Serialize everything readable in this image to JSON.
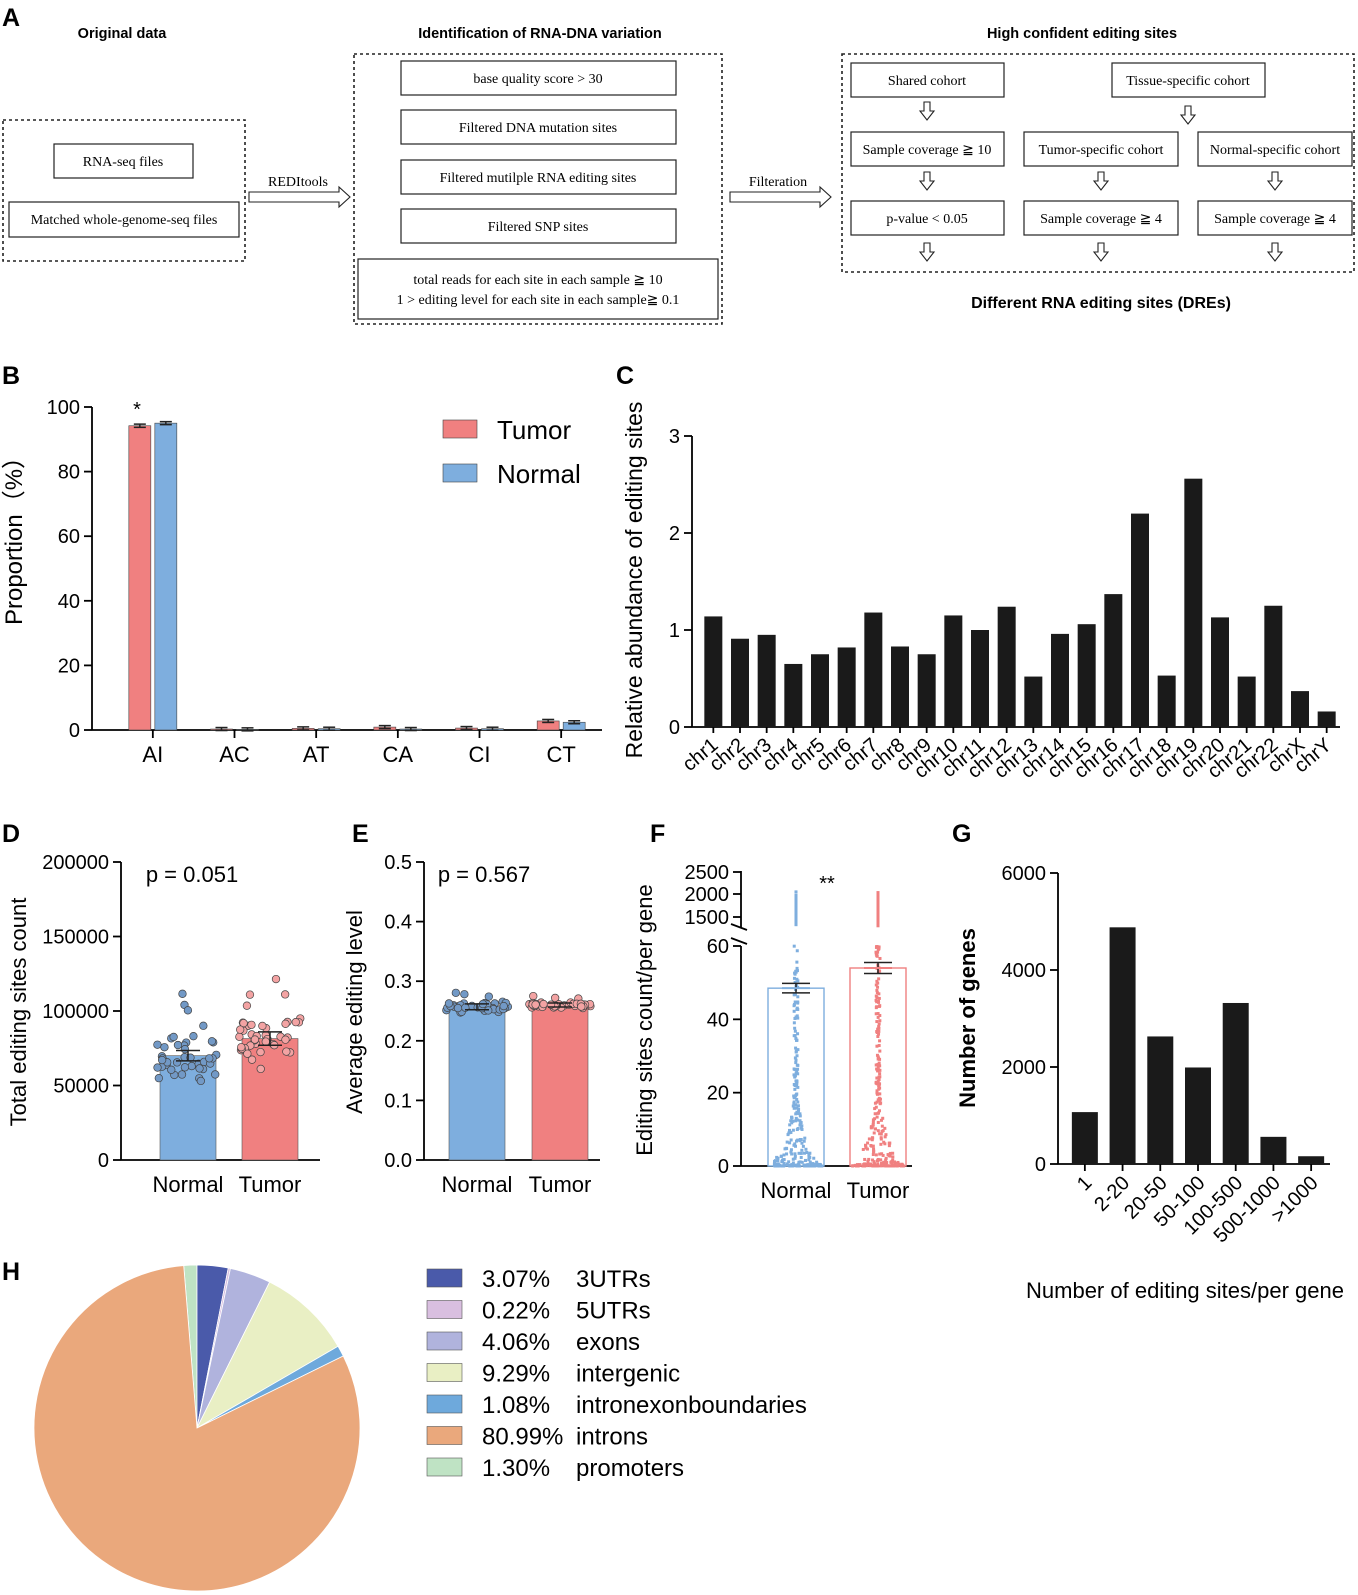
{
  "panel_labels": {
    "A": "A",
    "B": "B",
    "C": "C",
    "D": "D",
    "E": "E",
    "F": "F",
    "G": "G",
    "H": "H"
  },
  "flow": {
    "headers": {
      "original": "Original data",
      "identification": "Identification of RNA-DNA variation",
      "confident": "High confident editing sites"
    },
    "original_boxes": [
      "RNA-seq files",
      "Matched whole-genome-seq files"
    ],
    "tool_label": "REDItools",
    "filter_label": "Filteration",
    "ident_boxes": [
      "base quality score > 30",
      "Filtered DNA mutation sites",
      "Filtered mutilple RNA editing sites",
      "Filtered SNP sites"
    ],
    "ident_last_line1": "total reads for each site in each sample ≧ 10",
    "ident_last_line2": "1 > editing level for each site in each sample≧ 0.1",
    "cohorts": {
      "shared": "Shared cohort",
      "tissue": "Tissue-specific cohort",
      "tumor": "Tumor-specific cohort",
      "normal": "Normal-specific cohort",
      "shared_cov": "Sample coverage ≧ 10",
      "shared_p": "p-value < 0.05",
      "tumor_cov": "Sample coverage ≧ 4",
      "normal_cov": "Sample coverage ≧ 4"
    },
    "result": "Different RNA editing sites (DREs)"
  },
  "colors": {
    "tumor": "#f08080",
    "normal": "#7eaede",
    "tumor_dot": "#f3a3a3",
    "normal_dot": "#7299c6",
    "bar": "#1a1a1a"
  },
  "chart_data": [
    {
      "id": "B",
      "type": "bar",
      "title": "",
      "ylabel": "Proportion（%）",
      "ylim": [
        0,
        100
      ],
      "yticks": [
        0,
        20,
        40,
        60,
        80,
        100
      ],
      "categories": [
        "AI",
        "AC",
        "AT",
        "CA",
        "CI",
        "CT"
      ],
      "series": [
        {
          "name": "Tumor",
          "values": [
            94.2,
            0.3,
            0.5,
            0.9,
            0.6,
            2.8
          ],
          "errors": [
            0.5,
            0.1,
            0.1,
            0.2,
            0.1,
            0.2
          ]
        },
        {
          "name": "Normal",
          "values": [
            95.0,
            0.2,
            0.4,
            0.3,
            0.4,
            2.4
          ],
          "errors": [
            0.3,
            0.1,
            0.1,
            0.1,
            0.1,
            0.2
          ]
        }
      ],
      "annotation": "*",
      "legend": "top-right"
    },
    {
      "id": "C",
      "type": "bar",
      "ylabel": "Relative abundance of editing sites",
      "ylim": [
        0,
        3
      ],
      "yticks": [
        0,
        1,
        2,
        3
      ],
      "categories": [
        "chr1",
        "chr2",
        "chr3",
        "chr4",
        "chr5",
        "chr6",
        "chr7",
        "chr8",
        "chr9",
        "chr10",
        "chr11",
        "chr12",
        "chr13",
        "chr14",
        "chr15",
        "chr16",
        "chr17",
        "chr18",
        "chr19",
        "chr20",
        "chr21",
        "chr22",
        "chrX",
        "chrY"
      ],
      "values": [
        1.14,
        0.91,
        0.95,
        0.65,
        0.75,
        0.82,
        1.18,
        0.83,
        0.75,
        1.15,
        1.0,
        1.24,
        0.52,
        0.96,
        1.06,
        1.37,
        2.2,
        0.53,
        2.56,
        1.13,
        0.52,
        1.25,
        0.37,
        0.16
      ]
    },
    {
      "id": "D",
      "type": "bar",
      "ylabel": "Total editing sites count",
      "ylim": [
        0,
        200000
      ],
      "yticks": [
        0,
        50000,
        100000,
        150000,
        200000
      ],
      "categories": [
        "Normal",
        "Tumor"
      ],
      "values": [
        70000,
        81500
      ],
      "errors": [
        3500,
        4500
      ],
      "annotation": "p = 0.051"
    },
    {
      "id": "E",
      "type": "bar",
      "ylabel": "Average editing level",
      "ylim": [
        0,
        0.5
      ],
      "yticks": [
        0.0,
        0.1,
        0.2,
        0.3,
        0.4,
        0.5
      ],
      "categories": [
        "Normal",
        "Tumor"
      ],
      "values": [
        0.257,
        0.26
      ],
      "errors": [
        0.005,
        0.002
      ],
      "annotation": "p = 0.567"
    },
    {
      "id": "F",
      "type": "bar",
      "ylabel": "Editing sites count/per gene",
      "ylim": [
        0,
        60
      ],
      "yticks": [
        0,
        20,
        40,
        60
      ],
      "ybreak_ticks": [
        1500,
        2000,
        2500
      ],
      "categories": [
        "Normal",
        "Tumor"
      ],
      "values": [
        48.5,
        54
      ],
      "errors": [
        1.3,
        1.5
      ],
      "annotation": "**"
    },
    {
      "id": "G",
      "type": "bar",
      "ylabel": "Number of genes",
      "xlabel": "Number of editing sites/per gene",
      "ylim": [
        0,
        6000
      ],
      "yticks": [
        0,
        2000,
        4000,
        6000
      ],
      "categories": [
        "1",
        "2-20",
        "20-50",
        "50-100",
        "100-500",
        "500-1000",
        ">1000"
      ],
      "values": [
        1070,
        4880,
        2630,
        1990,
        3320,
        560,
        160
      ]
    },
    {
      "id": "H",
      "type": "pie",
      "slices": [
        {
          "label": "3UTRs",
          "pct": "3.07%",
          "value": 3.07,
          "color": "#4a5aaa"
        },
        {
          "label": "5UTRs",
          "pct": "0.22%",
          "value": 0.22,
          "color": "#d9bfe0"
        },
        {
          "label": "exons",
          "pct": "4.06%",
          "value": 4.06,
          "color": "#b0b3dd"
        },
        {
          "label": "intergenic",
          "pct": "9.29%",
          "value": 9.29,
          "color": "#e9efc4"
        },
        {
          "label": "intronexonboundaries",
          "pct": "1.08%",
          "value": 1.08,
          "color": "#6ea9dc"
        },
        {
          "label": "introns",
          "pct": "80.99%",
          "value": 80.99,
          "color": "#eaa87c"
        },
        {
          "label": "promoters",
          "pct": "1.30%",
          "value": 1.3,
          "color": "#bfe3c4"
        }
      ]
    }
  ]
}
